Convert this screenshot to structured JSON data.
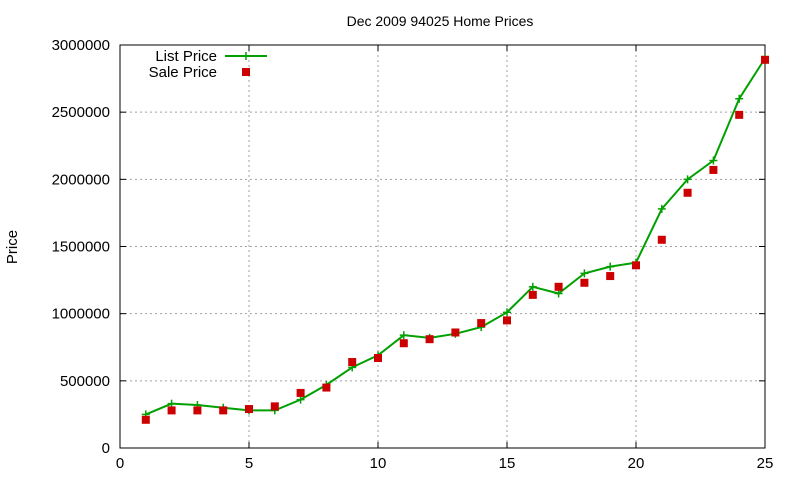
{
  "chart_data": {
    "type": "line",
    "title": "Dec 2009 94025 Home Prices",
    "xlabel": "",
    "ylabel": "Price",
    "xlim": [
      0,
      25
    ],
    "ylim": [
      0,
      3000000
    ],
    "x_ticks": [
      0,
      5,
      10,
      15,
      20,
      25
    ],
    "y_ticks": [
      0,
      500000,
      1000000,
      1500000,
      2000000,
      2500000,
      3000000
    ],
    "grid": true,
    "legend_position": "top-left",
    "series": [
      {
        "name": "List Price",
        "style": "line+cross",
        "color": "#00a000",
        "x": [
          1,
          2,
          3,
          4,
          5,
          6,
          7,
          8,
          9,
          10,
          11,
          12,
          13,
          14,
          15,
          16,
          17,
          18,
          19,
          20,
          21,
          22,
          23,
          24,
          25
        ],
        "y": [
          250000,
          330000,
          320000,
          300000,
          280000,
          280000,
          360000,
          470000,
          600000,
          690000,
          840000,
          820000,
          850000,
          900000,
          1010000,
          1200000,
          1150000,
          1300000,
          1350000,
          1380000,
          1780000,
          2000000,
          2140000,
          2600000,
          2900000
        ]
      },
      {
        "name": "Sale Price",
        "style": "square",
        "color": "#cc0000",
        "x": [
          1,
          2,
          3,
          4,
          5,
          6,
          7,
          8,
          9,
          10,
          11,
          12,
          13,
          14,
          15,
          16,
          17,
          18,
          19,
          20,
          21,
          22,
          23,
          24,
          25
        ],
        "y": [
          210000,
          280000,
          280000,
          280000,
          290000,
          310000,
          410000,
          450000,
          640000,
          670000,
          780000,
          810000,
          860000,
          930000,
          950000,
          1140000,
          1200000,
          1230000,
          1280000,
          1360000,
          1550000,
          1900000,
          2070000,
          2480000,
          2890000
        ]
      }
    ]
  }
}
